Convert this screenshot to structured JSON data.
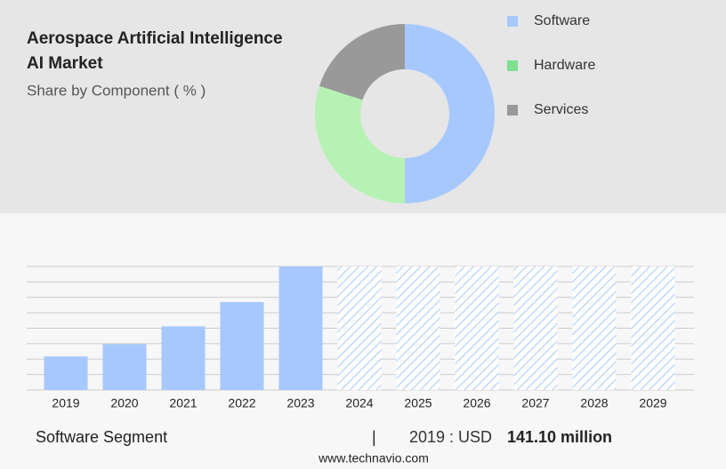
{
  "chart_data": [
    {
      "type": "donut",
      "title": "Aerospace Artificial Intelligence AI Market",
      "subtitle": "Share by Component ( % )",
      "categories": [
        "Software",
        "Hardware",
        "Services"
      ],
      "values": [
        50,
        30,
        20
      ],
      "colors": [
        "#a6c8ff",
        "#b6f2b4",
        "#999999"
      ],
      "legend_colors": [
        "#a6c8ff",
        "#7fe08f",
        "#999999"
      ]
    },
    {
      "type": "bar",
      "categories": [
        "2019",
        "2020",
        "2021",
        "2022",
        "2023",
        "2024",
        "2025",
        "2026",
        "2027",
        "2028",
        "2029"
      ],
      "values": [
        141.1,
        193,
        268,
        370,
        520,
        null,
        null,
        null,
        null,
        null,
        null
      ],
      "color": "#a6c8ff",
      "ylim": [
        0,
        520
      ],
      "yticks": [
        0,
        65,
        130,
        195,
        260,
        325,
        390,
        455,
        520
      ],
      "grid": true
    }
  ],
  "footer": {
    "segment": "Software Segment",
    "separator": "|",
    "year_label": "2019 : USD",
    "value_label": "141.10 million",
    "source": "www.technavio.com"
  }
}
